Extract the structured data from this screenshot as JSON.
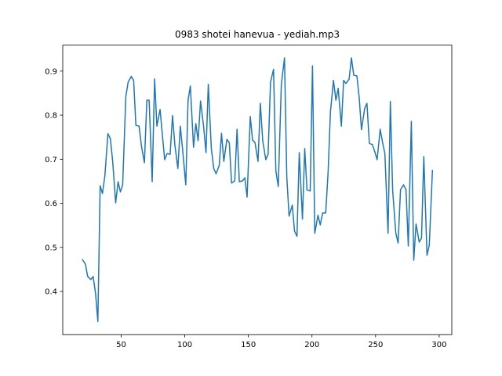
{
  "chart_data": {
    "type": "line",
    "title": "0983 shotei hanevua - yediah.mp3",
    "x": [
      19.4,
      21.9,
      23.7,
      26.2,
      28.0,
      29.9,
      31.7,
      33.5,
      35.3,
      37.2,
      39.6,
      41.5,
      43.3,
      45.7,
      47.6,
      49.4,
      51.2,
      53.7,
      55.5,
      58.0,
      59.8,
      61.6,
      64.1,
      65.9,
      68.3,
      70.2,
      72.0,
      74.4,
      76.3,
      78.1,
      80.6,
      82.4,
      84.2,
      86.1,
      88.5,
      90.4,
      92.2,
      94.6,
      96.5,
      98.3,
      100.8,
      102.6,
      104.4,
      106.9,
      108.7,
      110.5,
      112.4,
      114.8,
      116.7,
      118.5,
      120.9,
      122.8,
      124.6,
      127.1,
      128.9,
      130.7,
      133.1,
      135.0,
      136.8,
      139.3,
      141.1,
      142.9,
      145.4,
      147.2,
      149.0,
      151.5,
      153.3,
      155.2,
      157.6,
      159.4,
      161.3,
      163.7,
      165.5,
      167.4,
      169.8,
      171.6,
      173.5,
      175.9,
      178.4,
      180.2,
      182.0,
      184.5,
      186.3,
      188.2,
      190.0,
      192.5,
      194.3,
      196.1,
      198.6,
      200.4,
      202.2,
      204.7,
      206.5,
      208.4,
      210.8,
      212.7,
      214.5,
      216.9,
      218.8,
      220.6,
      223.1,
      224.9,
      226.7,
      229.2,
      231.0,
      232.8,
      235.3,
      237.1,
      238.9,
      241.4,
      243.2,
      245.1,
      247.5,
      249.4,
      251.2,
      253.6,
      255.5,
      257.3,
      259.8,
      261.6,
      263.4,
      265.9,
      267.7,
      269.6,
      272.0,
      273.9,
      275.7,
      278.1,
      280.0,
      281.8,
      284.3,
      286.1,
      287.9,
      290.4,
      292.2,
      294.7
    ],
    "series": [
      {
        "color": "#1f77b4",
        "values": [
          0.473,
          0.462,
          0.434,
          0.427,
          0.434,
          0.395,
          0.332,
          0.64,
          0.622,
          0.662,
          0.758,
          0.747,
          0.697,
          0.601,
          0.649,
          0.626,
          0.642,
          0.843,
          0.875,
          0.888,
          0.879,
          0.777,
          0.775,
          0.731,
          0.692,
          0.834,
          0.834,
          0.649,
          0.882,
          0.775,
          0.813,
          0.756,
          0.699,
          0.713,
          0.711,
          0.799,
          0.733,
          0.679,
          0.775,
          0.722,
          0.642,
          0.834,
          0.866,
          0.727,
          0.781,
          0.742,
          0.832,
          0.775,
          0.715,
          0.87,
          0.724,
          0.679,
          0.667,
          0.686,
          0.759,
          0.695,
          0.745,
          0.738,
          0.646,
          0.651,
          0.768,
          0.649,
          0.651,
          0.658,
          0.614,
          0.797,
          0.743,
          0.738,
          0.695,
          0.827,
          0.742,
          0.699,
          0.711,
          0.875,
          0.904,
          0.674,
          0.638,
          0.87,
          0.93,
          0.66,
          0.571,
          0.596,
          0.537,
          0.525,
          0.715,
          0.564,
          0.724,
          0.63,
          0.628,
          0.912,
          0.532,
          0.573,
          0.551,
          0.578,
          0.578,
          0.672,
          0.807,
          0.879,
          0.834,
          0.861,
          0.775,
          0.879,
          0.872,
          0.882,
          0.93,
          0.891,
          0.889,
          0.84,
          0.767,
          0.815,
          0.827,
          0.736,
          0.733,
          0.717,
          0.699,
          0.768,
          0.738,
          0.713,
          0.532,
          0.831,
          0.63,
          0.532,
          0.51,
          0.631,
          0.642,
          0.631,
          0.503,
          0.786,
          0.471,
          0.553,
          0.512,
          0.521,
          0.706,
          0.482,
          0.505,
          0.676
        ]
      }
    ],
    "xlim": [
      4.1,
      309.9
    ],
    "ylim": [
      0.302,
      0.959
    ],
    "xticks": [
      50,
      100,
      150,
      200,
      250,
      300
    ],
    "yticks": [
      0.4,
      0.5,
      0.6,
      0.7,
      0.8,
      0.9
    ]
  }
}
